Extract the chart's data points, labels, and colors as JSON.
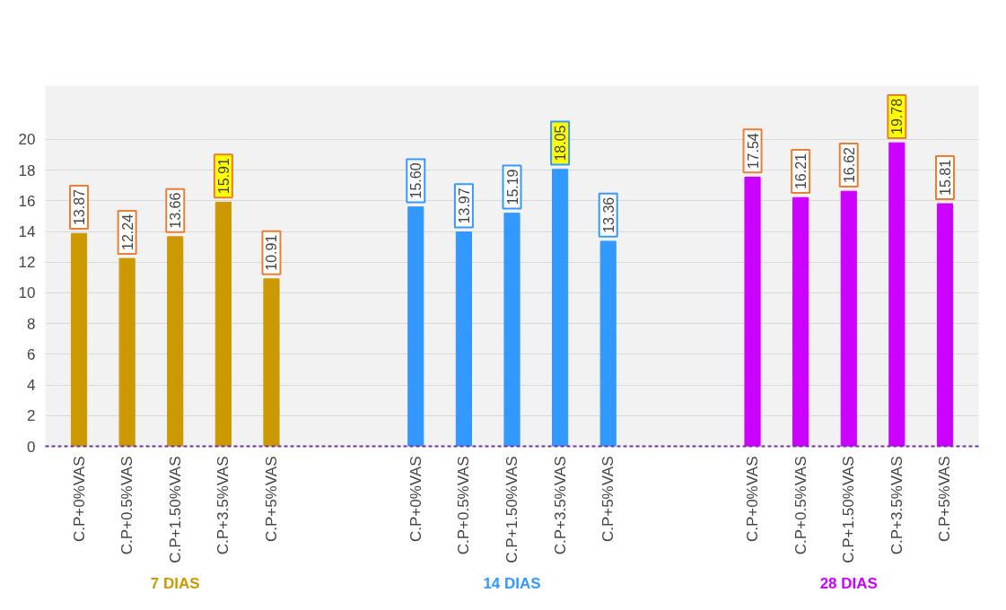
{
  "chart_data": {
    "type": "bar",
    "categories": [
      "C.P+0%VAS",
      "C.P+0.5%VAS",
      "C.P+1.50%VAS",
      "C.P+3.5%VAS",
      "C.P+5%VAS",
      null,
      null,
      "C.P+0%VAS",
      "C.P+0.5%VAS",
      "C.P+1.50%VAS",
      "C.P+3.5%VAS",
      "C.P+5%VAS",
      null,
      null,
      "C.P+0%VAS",
      "C.P+0.5%VAS",
      "C.P+1.50%VAS",
      "C.P+3.5%VAS",
      "C.P+5%VAS"
    ],
    "series": [
      {
        "name": "7 DIAS",
        "color": "#cc9900",
        "values": [
          13.87,
          12.24,
          13.66,
          15.91,
          10.91,
          null,
          null,
          null,
          null,
          null,
          null,
          null,
          null,
          null,
          null,
          null,
          null,
          null,
          null
        ],
        "value_labels": [
          "13.87",
          "12.24",
          "13.66",
          "15.91",
          "10.91",
          null,
          null,
          null,
          null,
          null,
          null,
          null,
          null,
          null,
          null,
          null,
          null,
          null,
          null
        ]
      },
      {
        "name": "14 DIAS",
        "color": "#3399ff",
        "values": [
          null,
          null,
          null,
          null,
          null,
          null,
          null,
          15.6,
          13.97,
          15.19,
          18.05,
          13.36,
          null,
          null,
          null,
          null,
          null,
          null,
          null
        ],
        "value_labels": [
          null,
          null,
          null,
          null,
          null,
          null,
          null,
          "15.60",
          "13.97",
          "15.19",
          "18.05",
          "13.36",
          null,
          null,
          null,
          null,
          null,
          null,
          null
        ]
      },
      {
        "name": "28 DIAS",
        "color": "#cc00ff",
        "values": [
          null,
          null,
          null,
          null,
          null,
          null,
          null,
          null,
          null,
          null,
          null,
          null,
          null,
          null,
          17.54,
          16.21,
          16.62,
          19.78,
          15.81
        ],
        "value_labels": [
          null,
          null,
          null,
          null,
          null,
          null,
          null,
          null,
          null,
          null,
          null,
          null,
          null,
          null,
          "17.54",
          "16.21",
          "16.62",
          "19.78",
          "15.81"
        ]
      }
    ],
    "ylim": [
      0,
      23.5
    ],
    "yticks": [
      0,
      2,
      4,
      6,
      8,
      10,
      12,
      14,
      16,
      18,
      20
    ],
    "grid": "y"
  }
}
